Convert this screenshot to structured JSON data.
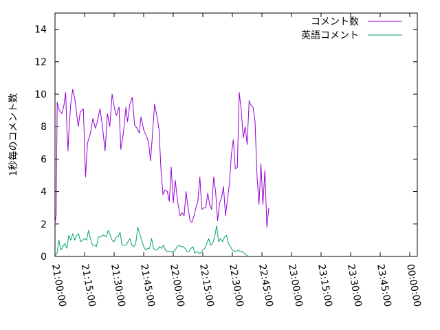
{
  "chart_data": {
    "type": "line",
    "title": "",
    "xlabel": "",
    "ylabel": "1秒毎のコメント数",
    "xlim_minutes": [
      0,
      180
    ],
    "ylim": [
      0,
      15
    ],
    "x_ticks": [
      {
        "label": "21:00:00",
        "minute": 0
      },
      {
        "label": "21:15:00",
        "minute": 15
      },
      {
        "label": "21:30:00",
        "minute": 30
      },
      {
        "label": "21:45:00",
        "minute": 45
      },
      {
        "label": "22:00:00",
        "minute": 60
      },
      {
        "label": "22:15:00",
        "minute": 75
      },
      {
        "label": "22:30:00",
        "minute": 90
      },
      {
        "label": "22:45:00",
        "minute": 105
      },
      {
        "label": "23:00:00",
        "minute": 120
      },
      {
        "label": "23:15:00",
        "minute": 135
      },
      {
        "label": "23:30:00",
        "minute": 150
      },
      {
        "label": "23:45:00",
        "minute": 165
      },
      {
        "label": "00:00:00",
        "minute": 180
      }
    ],
    "y_ticks": [
      0,
      2,
      4,
      6,
      8,
      10,
      12,
      14
    ],
    "legend_position": "top-right",
    "grid": false,
    "series": [
      {
        "name": "コメント数",
        "color": "#9400d3",
        "points": [
          [
            0.0,
            2.0
          ],
          [
            0.6,
            2.6
          ],
          [
            1.1,
            9.5
          ],
          [
            2.2,
            9.0
          ],
          [
            3.5,
            8.8
          ],
          [
            4.5,
            9.3
          ],
          [
            5.4,
            10.1
          ],
          [
            6.0,
            8.1
          ],
          [
            6.6,
            6.5
          ],
          [
            7.2,
            8.0
          ],
          [
            8.0,
            9.4
          ],
          [
            9.0,
            10.3
          ],
          [
            10.2,
            9.6
          ],
          [
            11.8,
            8.0
          ],
          [
            12.8,
            8.9
          ],
          [
            14.4,
            9.1
          ],
          [
            15.5,
            4.9
          ],
          [
            16.5,
            7.0
          ],
          [
            18.0,
            7.6
          ],
          [
            19.2,
            8.5
          ],
          [
            20.5,
            7.9
          ],
          [
            21.5,
            8.3
          ],
          [
            22.8,
            9.1
          ],
          [
            24.0,
            8.1
          ],
          [
            25.4,
            6.5
          ],
          [
            26.6,
            8.8
          ],
          [
            27.8,
            8.0
          ],
          [
            29.0,
            10.0
          ],
          [
            30.2,
            9.1
          ],
          [
            31.2,
            8.7
          ],
          [
            32.5,
            9.2
          ],
          [
            33.4,
            6.6
          ],
          [
            34.6,
            7.5
          ],
          [
            36.0,
            9.2
          ],
          [
            36.8,
            8.3
          ],
          [
            38.0,
            9.4
          ],
          [
            39.2,
            9.8
          ],
          [
            40.4,
            8.1
          ],
          [
            41.6,
            7.9
          ],
          [
            42.8,
            7.6
          ],
          [
            43.6,
            8.6
          ],
          [
            45.0,
            7.8
          ],
          [
            46.5,
            7.4
          ],
          [
            47.5,
            7.0
          ],
          [
            48.5,
            5.9
          ],
          [
            49.5,
            7.6
          ],
          [
            50.5,
            9.4
          ],
          [
            51.8,
            8.6
          ],
          [
            52.8,
            7.8
          ],
          [
            53.8,
            5.3
          ],
          [
            54.8,
            3.8
          ],
          [
            55.8,
            4.1
          ],
          [
            57.0,
            4.0
          ],
          [
            58.0,
            3.4
          ],
          [
            59.0,
            5.5
          ],
          [
            60.0,
            3.3
          ],
          [
            61.0,
            4.7
          ],
          [
            62.2,
            3.4
          ],
          [
            63.5,
            2.5
          ],
          [
            64.5,
            2.7
          ],
          [
            65.5,
            2.5
          ],
          [
            66.5,
            4.0
          ],
          [
            67.5,
            3.0
          ],
          [
            68.5,
            2.2
          ],
          [
            69.5,
            2.1
          ],
          [
            70.5,
            2.5
          ],
          [
            71.5,
            3.0
          ],
          [
            72.5,
            3.4
          ],
          [
            73.5,
            4.9
          ],
          [
            74.5,
            2.9
          ],
          [
            75.5,
            3.0
          ],
          [
            76.5,
            3.0
          ],
          [
            77.5,
            3.9
          ],
          [
            78.5,
            3.2
          ],
          [
            79.5,
            2.9
          ],
          [
            80.5,
            4.9
          ],
          [
            81.5,
            4.0
          ],
          [
            82.5,
            2.2
          ],
          [
            83.5,
            3.3
          ],
          [
            84.5,
            3.6
          ],
          [
            85.5,
            4.3
          ],
          [
            86.5,
            2.5
          ],
          [
            87.5,
            3.5
          ],
          [
            88.5,
            4.5
          ],
          [
            89.5,
            6.3
          ],
          [
            90.5,
            7.2
          ],
          [
            91.5,
            5.4
          ],
          [
            92.5,
            5.5
          ],
          [
            93.5,
            10.1
          ],
          [
            94.5,
            9.0
          ],
          [
            95.5,
            7.3
          ],
          [
            96.5,
            8.0
          ],
          [
            97.5,
            6.9
          ],
          [
            98.5,
            9.6
          ],
          [
            99.5,
            9.3
          ],
          [
            100.5,
            9.2
          ],
          [
            101.5,
            8.3
          ],
          [
            102.5,
            5.0
          ],
          [
            103.5,
            3.2
          ],
          [
            104.5,
            5.7
          ],
          [
            105.5,
            3.2
          ],
          [
            106.5,
            5.3
          ],
          [
            107.5,
            1.8
          ],
          [
            108.5,
            3.0
          ]
        ]
      },
      {
        "name": "英語コメント",
        "color": "#009e73",
        "points": [
          [
            0.0,
            0.0
          ],
          [
            1.0,
            0.2
          ],
          [
            2.0,
            1.0
          ],
          [
            3.0,
            0.4
          ],
          [
            4.0,
            0.6
          ],
          [
            5.0,
            0.8
          ],
          [
            6.0,
            0.5
          ],
          [
            7.0,
            1.3
          ],
          [
            8.0,
            1.0
          ],
          [
            9.0,
            1.4
          ],
          [
            10.0,
            1.0
          ],
          [
            11.0,
            1.3
          ],
          [
            12.0,
            1.4
          ],
          [
            13.0,
            0.9
          ],
          [
            14.0,
            1.0
          ],
          [
            15.0,
            1.1
          ],
          [
            16.0,
            1.0
          ],
          [
            17.0,
            1.6
          ],
          [
            18.0,
            1.1
          ],
          [
            19.0,
            0.7
          ],
          [
            20.0,
            0.7
          ],
          [
            21.0,
            0.6
          ],
          [
            22.0,
            1.2
          ],
          [
            23.0,
            1.2
          ],
          [
            24.0,
            1.3
          ],
          [
            25.0,
            1.3
          ],
          [
            26.0,
            1.2
          ],
          [
            27.0,
            1.6
          ],
          [
            28.0,
            1.3
          ],
          [
            29.0,
            1.0
          ],
          [
            30.0,
            0.9
          ],
          [
            31.0,
            1.2
          ],
          [
            32.0,
            1.2
          ],
          [
            33.0,
            1.5
          ],
          [
            34.0,
            0.7
          ],
          [
            35.0,
            0.7
          ],
          [
            36.0,
            0.7
          ],
          [
            37.0,
            0.9
          ],
          [
            38.0,
            1.1
          ],
          [
            39.0,
            0.7
          ],
          [
            40.0,
            0.6
          ],
          [
            41.0,
            0.8
          ],
          [
            42.0,
            1.8
          ],
          [
            43.0,
            1.4
          ],
          [
            44.0,
            1.0
          ],
          [
            45.0,
            0.6
          ],
          [
            46.0,
            0.4
          ],
          [
            47.0,
            0.5
          ],
          [
            48.0,
            0.5
          ],
          [
            49.0,
            1.1
          ],
          [
            50.0,
            0.5
          ],
          [
            51.0,
            0.4
          ],
          [
            52.0,
            0.4
          ],
          [
            53.0,
            0.6
          ],
          [
            54.0,
            0.5
          ],
          [
            55.0,
            0.7
          ],
          [
            56.0,
            0.4
          ],
          [
            57.0,
            0.3
          ],
          [
            58.0,
            0.3
          ],
          [
            59.0,
            0.3
          ],
          [
            60.0,
            0.3
          ],
          [
            61.0,
            0.4
          ],
          [
            62.0,
            0.6
          ],
          [
            63.0,
            0.7
          ],
          [
            64.0,
            0.6
          ],
          [
            65.0,
            0.6
          ],
          [
            66.0,
            0.5
          ],
          [
            67.0,
            0.3
          ],
          [
            68.0,
            0.3
          ],
          [
            69.0,
            0.5
          ],
          [
            70.0,
            0.6
          ],
          [
            71.0,
            0.2
          ],
          [
            72.0,
            0.3
          ],
          [
            73.0,
            0.2
          ],
          [
            74.0,
            0.2
          ],
          [
            75.0,
            0.4
          ],
          [
            76.0,
            0.5
          ],
          [
            77.0,
            0.8
          ],
          [
            78.0,
            1.1
          ],
          [
            79.0,
            0.7
          ],
          [
            80.0,
            0.8
          ],
          [
            81.0,
            1.2
          ],
          [
            82.0,
            1.9
          ],
          [
            83.0,
            0.9
          ],
          [
            84.0,
            1.1
          ],
          [
            85.0,
            0.9
          ],
          [
            86.0,
            1.2
          ],
          [
            87.0,
            1.3
          ],
          [
            88.0,
            0.8
          ],
          [
            89.0,
            0.6
          ],
          [
            90.0,
            0.4
          ],
          [
            91.0,
            0.3
          ],
          [
            92.0,
            0.3
          ],
          [
            93.0,
            0.4
          ],
          [
            94.0,
            0.3
          ],
          [
            95.0,
            0.3
          ],
          [
            96.0,
            0.2
          ],
          [
            97.0,
            0.1
          ],
          [
            98.0,
            0.0
          ]
        ]
      }
    ]
  }
}
